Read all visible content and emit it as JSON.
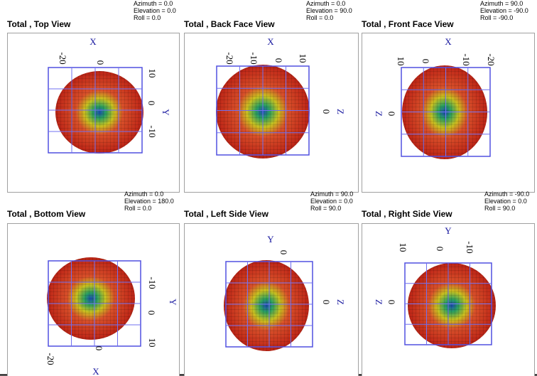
{
  "panels": [
    {
      "title": "Total , Top View",
      "view": [
        "Azimuth = 0.0",
        "Elevation = 0.0",
        "Roll = 0.0"
      ],
      "labels": [
        "X",
        "-20",
        "0",
        "10",
        "0",
        "-10",
        "Y"
      ]
    },
    {
      "title": "Total , Back Face View",
      "view": [
        "Azimuth = 0.0",
        "Elevation = 90.0",
        "Roll = 0.0"
      ],
      "labels": [
        "X",
        "-20",
        "-10",
        "0",
        "10",
        "0",
        "Z"
      ]
    },
    {
      "title": "Total , Front Face View",
      "view": [
        "Azimuth = 90.0",
        "Elevation = -90.0",
        "Roll = -90.0"
      ],
      "labels": [
        "X",
        "10",
        "0",
        "-10",
        "-20",
        "Z",
        "0"
      ]
    },
    {
      "title": "Total , Bottom View",
      "view": [
        "Azimuth = 0.0",
        "Elevation = 180.0",
        "Roll = 0.0"
      ],
      "labels": [
        "-10",
        "0",
        "10",
        "Y",
        "-20",
        "0",
        "X"
      ]
    },
    {
      "title": "Total , Left Side View",
      "view": [
        "Azimuth = 90.0",
        "Elevation = 0.0",
        "Roll = 90.0"
      ],
      "labels": [
        "Y",
        "0",
        "0",
        "Z"
      ]
    },
    {
      "title": "Total , Right Side View",
      "view": [
        "Azimuth = -90.0",
        "Elevation = 0.0",
        "Roll = 90.0"
      ],
      "labels": [
        "Y",
        "10",
        "0",
        "-10",
        "Z",
        "0"
      ]
    }
  ]
}
